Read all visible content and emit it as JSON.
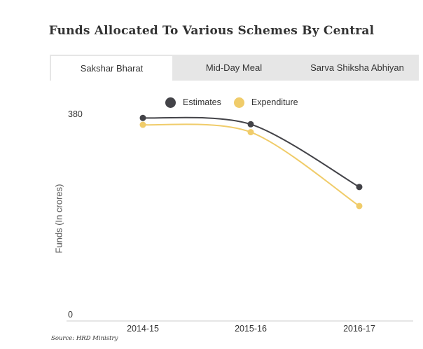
{
  "title": "Funds Allocated To Various Schemes By Central",
  "tabs": [
    {
      "label": "Sakshar Bharat",
      "active": true
    },
    {
      "label": "Mid-Day Meal",
      "active": false
    },
    {
      "label": "Sarva Shiksha Abhiyan",
      "active": false
    }
  ],
  "source": "Source: HRD Ministry",
  "chart_data": {
    "type": "line",
    "ylabel": "Funds (In crores)",
    "xlabel": "",
    "ylim": [
      0,
      380
    ],
    "yticks": [
      "380",
      "0"
    ],
    "categories": [
      "2014-15",
      "2015-16",
      "2016-17"
    ],
    "legend_position": "top-center",
    "grid": false,
    "series": [
      {
        "name": "Estimates",
        "color": "#434348",
        "values": [
          373,
          361,
          242
        ]
      },
      {
        "name": "Expenditure",
        "color": "#f0cc6a",
        "values": [
          360,
          346,
          206
        ]
      }
    ]
  }
}
